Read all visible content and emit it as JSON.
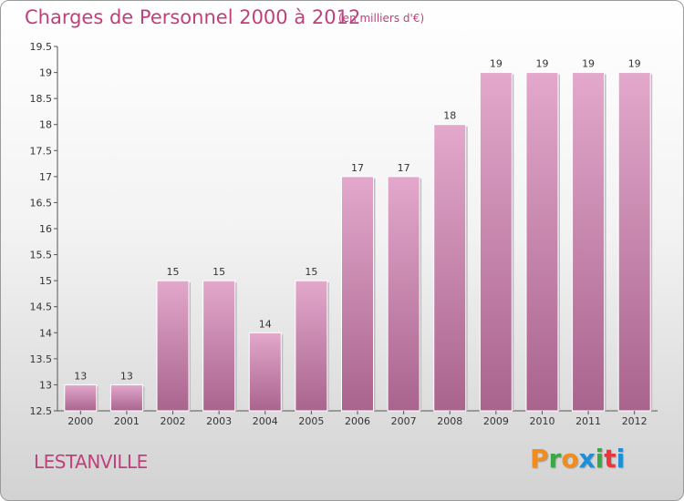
{
  "header": {
    "title": "Charges de Personnel 2000 à 2012",
    "subtitle": "(en milliers d'€)"
  },
  "footer": {
    "city": "LESTANVILLE",
    "logo": "Proxiti"
  },
  "colors": {
    "title": "#c0407c",
    "bar_top": "#e3a8cc",
    "bar_bottom": "#a9648d",
    "logo_letters": [
      "#f28c1e",
      "#39a845",
      "#f28c1e",
      "#1d8fd6",
      "#39a845",
      "#e8373c",
      "#1d8fd6"
    ]
  },
  "chart_data": {
    "type": "bar",
    "categories": [
      "2000",
      "2001",
      "2002",
      "2003",
      "2004",
      "2005",
      "2006",
      "2007",
      "2008",
      "2009",
      "2010",
      "2011",
      "2012"
    ],
    "values": [
      13,
      13,
      15,
      15,
      14,
      15,
      17,
      17,
      18,
      19,
      19,
      19,
      19
    ],
    "value_labels": [
      "13",
      "13",
      "15",
      "15",
      "14",
      "15",
      "17",
      "17",
      "18",
      "19",
      "19",
      "19",
      "19"
    ],
    "ylim": [
      12.5,
      19.5
    ],
    "yticks": [
      "12.5",
      "13",
      "13.5",
      "14",
      "14.5",
      "15",
      "15.5",
      "16",
      "16.5",
      "17",
      "17.5",
      "18",
      "18.5",
      "19",
      "19.5"
    ],
    "grid": false,
    "legend": "none"
  }
}
